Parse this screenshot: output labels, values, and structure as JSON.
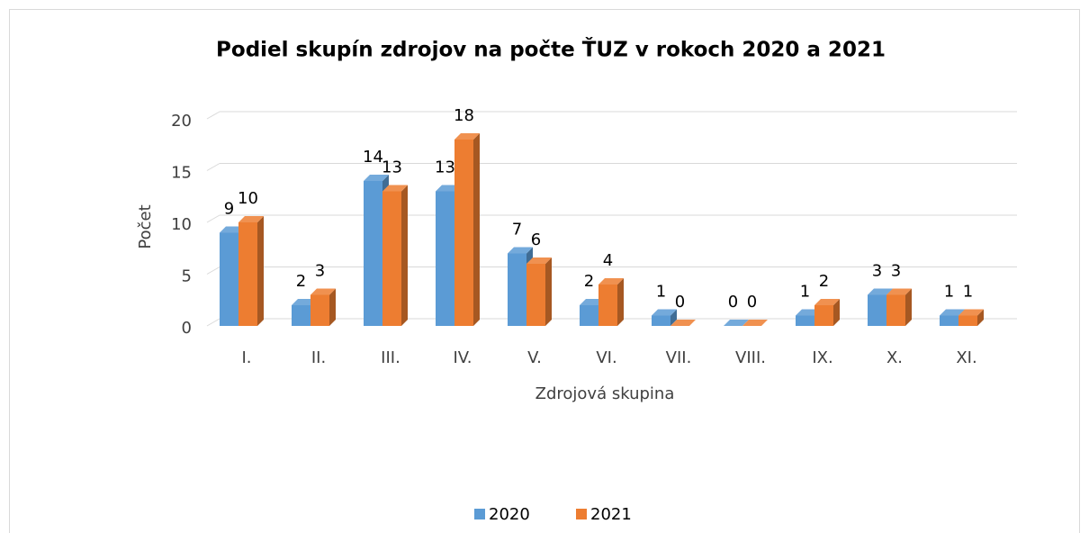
{
  "chart_data": {
    "type": "bar3d",
    "title": "Podiel skupín zdrojov na počte ŤUZ v rokoch 2020 a 2021",
    "x_label": "Zdrojová skupina",
    "y_label": "Počet",
    "categories": [
      "I.",
      "II.",
      "III.",
      "IV.",
      "V.",
      "VI.",
      "VII.",
      "VIII.",
      "IX.",
      "X.",
      "XI."
    ],
    "series": [
      {
        "name": "2020",
        "color": "#5b9bd5",
        "values": [
          9,
          2,
          14,
          13,
          7,
          2,
          1,
          0,
          1,
          3,
          1
        ]
      },
      {
        "name": "2021",
        "color": "#ed7d31",
        "values": [
          10,
          3,
          13,
          18,
          6,
          4,
          0,
          0,
          2,
          3,
          1
        ]
      }
    ],
    "ylim": [
      0,
      20
    ],
    "yticks": [
      0,
      5,
      10,
      15,
      20
    ],
    "grid": true,
    "legend": "bottom"
  }
}
